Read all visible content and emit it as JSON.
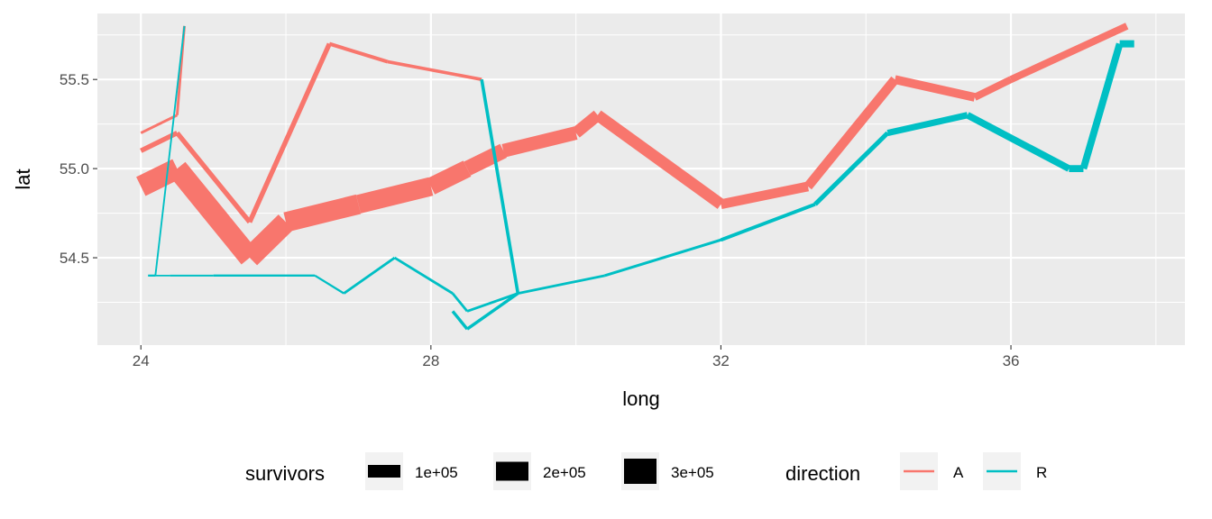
{
  "chart_data": {
    "type": "line",
    "xlabel": "long",
    "ylabel": "lat",
    "xlim": [
      23.4,
      38.4
    ],
    "ylim": [
      54.01,
      55.87
    ],
    "x_ticks": [
      24,
      28,
      32,
      36
    ],
    "x_tick_labels": [
      "24",
      "28",
      "32",
      "36"
    ],
    "y_ticks": [
      54.5,
      55.0,
      55.5
    ],
    "y_tick_labels": [
      "54.5",
      "55.0",
      "55.5"
    ],
    "grid": true,
    "legend_position": "bottom",
    "legends": {
      "survivors": {
        "title": "survivors",
        "entries": [
          {
            "label": "1e+05",
            "value": 100000
          },
          {
            "label": "2e+05",
            "value": 200000
          },
          {
            "label": "3e+05",
            "value": 300000
          }
        ]
      },
      "direction": {
        "title": "direction",
        "entries": [
          {
            "label": "A",
            "color": "#F8766D"
          },
          {
            "label": "R",
            "color": "#00BFC4"
          }
        ]
      }
    },
    "colors": {
      "A": "#F8766D",
      "R": "#00BFC4"
    },
    "paths": [
      {
        "direction": "A",
        "points": [
          {
            "long": 24.0,
            "lat": 54.9,
            "survivors": 340000
          },
          {
            "long": 24.5,
            "lat": 55.0,
            "survivors": 340000
          },
          {
            "long": 25.5,
            "lat": 54.5,
            "survivors": 340000
          },
          {
            "long": 26.0,
            "lat": 54.7,
            "survivors": 320000
          },
          {
            "long": 27.0,
            "lat": 54.8,
            "survivors": 300000
          },
          {
            "long": 28.0,
            "lat": 54.9,
            "survivors": 280000
          },
          {
            "long": 28.5,
            "lat": 55.0,
            "survivors": 240000
          },
          {
            "long": 29.0,
            "lat": 55.1,
            "survivors": 210000
          },
          {
            "long": 30.0,
            "lat": 55.2,
            "survivors": 180000
          },
          {
            "long": 30.3,
            "lat": 55.3,
            "survivors": 175000
          },
          {
            "long": 32.0,
            "lat": 54.8,
            "survivors": 145000
          },
          {
            "long": 33.2,
            "lat": 54.9,
            "survivors": 140000
          },
          {
            "long": 34.4,
            "lat": 55.5,
            "survivors": 127100
          },
          {
            "long": 35.5,
            "lat": 55.4,
            "survivors": 100000
          },
          {
            "long": 36.0,
            "lat": 55.5,
            "survivors": 100000
          },
          {
            "long": 37.6,
            "lat": 55.8,
            "survivors": 100000
          }
        ]
      },
      {
        "direction": "R",
        "points": [
          {
            "long": 37.7,
            "lat": 55.7,
            "survivors": 100000
          },
          {
            "long": 37.5,
            "lat": 55.7,
            "survivors": 98000
          },
          {
            "long": 37.0,
            "lat": 55.0,
            "survivors": 97000
          },
          {
            "long": 36.8,
            "lat": 55.0,
            "survivors": 96000
          },
          {
            "long": 35.4,
            "lat": 55.3,
            "survivors": 87000
          },
          {
            "long": 34.3,
            "lat": 55.2,
            "survivors": 55000
          },
          {
            "long": 33.3,
            "lat": 54.8,
            "survivors": 37000
          },
          {
            "long": 32.0,
            "lat": 54.6,
            "survivors": 24000
          },
          {
            "long": 30.4,
            "lat": 54.4,
            "survivors": 20000
          },
          {
            "long": 29.2,
            "lat": 54.3,
            "survivors": 20000
          },
          {
            "long": 28.5,
            "lat": 54.2,
            "survivors": 20000
          },
          {
            "long": 28.3,
            "lat": 54.3,
            "survivors": 20000
          },
          {
            "long": 27.5,
            "lat": 54.5,
            "survivors": 20000
          },
          {
            "long": 26.8,
            "lat": 54.3,
            "survivors": 12000
          },
          {
            "long": 26.4,
            "lat": 54.4,
            "survivors": 14000
          },
          {
            "long": 25.0,
            "lat": 54.4,
            "survivors": 8000
          },
          {
            "long": 24.4,
            "lat": 54.4,
            "survivors": 4000
          },
          {
            "long": 24.2,
            "lat": 54.4,
            "survivors": 10000
          },
          {
            "long": 24.1,
            "lat": 54.4,
            "survivors": 10000
          }
        ]
      },
      {
        "direction": "A",
        "points": [
          {
            "long": 24.0,
            "lat": 55.1,
            "survivors": 60000
          },
          {
            "long": 24.5,
            "lat": 55.2,
            "survivors": 60000
          },
          {
            "long": 25.5,
            "lat": 54.7,
            "survivors": 60000
          },
          {
            "long": 26.6,
            "lat": 55.7,
            "survivors": 40000
          },
          {
            "long": 27.4,
            "lat": 55.6,
            "survivors": 33000
          },
          {
            "long": 28.7,
            "lat": 55.5,
            "survivors": 33000
          }
        ]
      },
      {
        "direction": "R",
        "points": [
          {
            "long": 28.7,
            "lat": 55.5,
            "survivors": 33000
          },
          {
            "long": 29.2,
            "lat": 54.3,
            "survivors": 30000
          },
          {
            "long": 28.5,
            "lat": 54.1,
            "survivors": 30000
          },
          {
            "long": 28.3,
            "lat": 54.2,
            "survivors": 28000
          }
        ]
      },
      {
        "direction": "A",
        "points": [
          {
            "long": 24.0,
            "lat": 55.2,
            "survivors": 22000
          },
          {
            "long": 24.5,
            "lat": 55.3,
            "survivors": 22000
          },
          {
            "long": 24.6,
            "lat": 55.8,
            "survivors": 6000
          }
        ]
      },
      {
        "direction": "R",
        "points": [
          {
            "long": 24.6,
            "lat": 55.8,
            "survivors": 6000
          },
          {
            "long": 24.2,
            "lat": 54.4,
            "survivors": 6000
          },
          {
            "long": 24.1,
            "lat": 54.4,
            "survivors": 6000
          }
        ]
      }
    ]
  }
}
